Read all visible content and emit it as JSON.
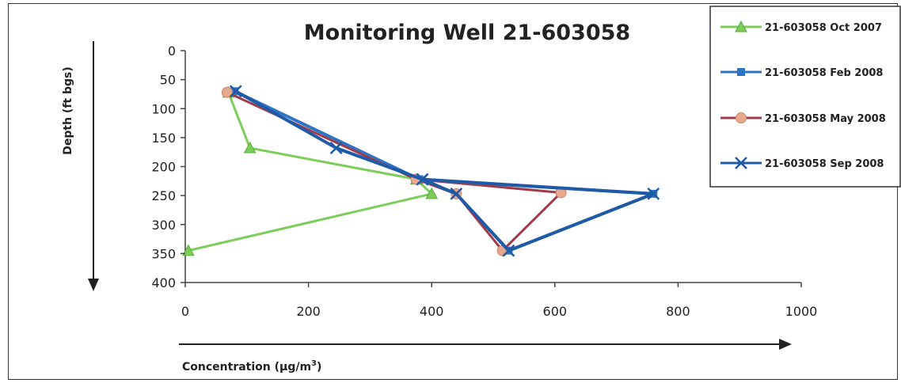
{
  "chart_data": {
    "type": "line",
    "title": "Monitoring Well 21-603058",
    "xlabel": "Concentration (µg/m",
    "xlabel_sup": "3",
    "xlabel_end": ")",
    "ylabel": "Depth (ft bgs)",
    "xlim": [
      0,
      1000
    ],
    "ylim": [
      0,
      400
    ],
    "y_inverted": true,
    "x_ticks": [
      "0",
      "200",
      "400",
      "600",
      "800",
      "1000"
    ],
    "y_ticks": [
      "0",
      "50",
      "100",
      "150",
      "200",
      "250",
      "300",
      "350",
      "400"
    ],
    "legend_position": "top-right",
    "series": [
      {
        "name": "21-603058 Oct 2007",
        "color": "#7ccd5a",
        "marker": "triangle",
        "points": [
          [
            70,
            72
          ],
          [
            105,
            168
          ],
          [
            375,
            222
          ],
          [
            400,
            247
          ],
          [
            5,
            345
          ]
        ]
      },
      {
        "name": "21-603058 Feb 2008",
        "color": "#2e74c4",
        "marker": "square",
        "points": [
          [
            80,
            70
          ],
          [
            380,
            222
          ],
          [
            760,
            247
          ],
          [
            525,
            345
          ],
          [
            440,
            247
          ],
          [
            380,
            222
          ]
        ]
      },
      {
        "name": "21-603058 May 2008",
        "color": "#a23a4a",
        "marker": "circle",
        "points": [
          [
            68,
            72
          ],
          [
            375,
            222
          ],
          [
            610,
            245
          ],
          [
            515,
            345
          ],
          [
            440,
            247
          ],
          [
            375,
            222
          ]
        ]
      },
      {
        "name": "21-603058 Sep 2008",
        "color": "#1f5aa6",
        "marker": "x",
        "points": [
          [
            82,
            70
          ],
          [
            245,
            168
          ],
          [
            385,
            222
          ],
          [
            760,
            247
          ],
          [
            525,
            345
          ],
          [
            440,
            247
          ],
          [
            385,
            222
          ]
        ]
      }
    ]
  }
}
